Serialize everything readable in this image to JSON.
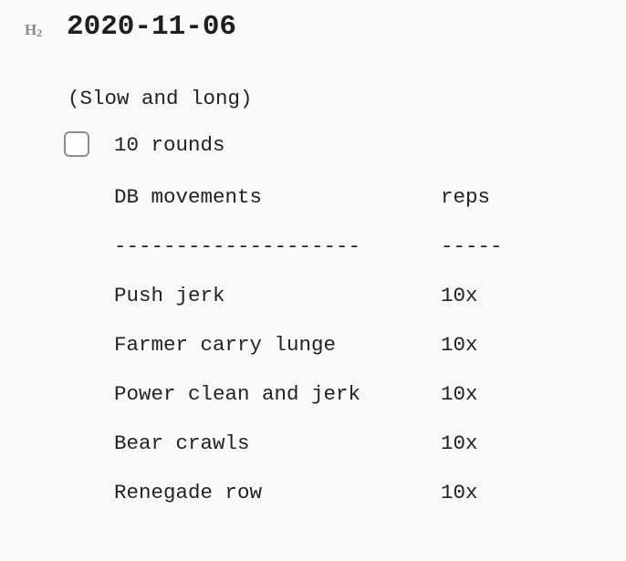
{
  "heading": {
    "marker": "H",
    "marker_level": "2",
    "title": "2020-11-06"
  },
  "note": "(Slow and long)",
  "task": {
    "checked": false,
    "label": "10 rounds"
  },
  "table": {
    "header": [
      "DB movements",
      "reps"
    ],
    "separator": [
      "--------------------",
      "-----"
    ],
    "rows": [
      [
        "Push jerk",
        "10x"
      ],
      [
        "Farmer carry lunge",
        "10x"
      ],
      [
        "Power clean and jerk",
        "10x"
      ],
      [
        "Bear crawls",
        "10x"
      ],
      [
        "Renegade row",
        "10x"
      ]
    ]
  }
}
